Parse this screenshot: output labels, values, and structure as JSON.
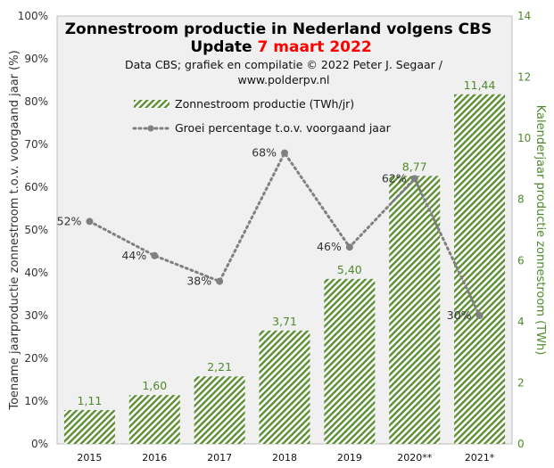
{
  "chart_data": {
    "type": "bar",
    "title_line1": "Zonnestroom productie in Nederland volgens CBS",
    "title_line2_prefix": "Update ",
    "title_line2_date": "7 maart 2022",
    "subtitle_line1": "Data CBS;  grafiek en compilatie  © 2022 Peter J. Segaar /",
    "subtitle_line2": "www.polderpv.nl",
    "categories": [
      "2015",
      "2016",
      "2017",
      "2018",
      "2019",
      "2020**",
      "2021*"
    ],
    "series": [
      {
        "name": "Zonnestroom productie (TWh/jr)",
        "type": "bar",
        "axis": "right",
        "values": [
          1.11,
          1.6,
          2.21,
          3.71,
          5.4,
          8.77,
          11.44
        ],
        "labels": [
          "1,11",
          "1,60",
          "2,21",
          "3,71",
          "5,40",
          "8,77",
          "11,44"
        ]
      },
      {
        "name": "Groei percentage t.o.v. voorgaand jaar",
        "type": "line",
        "axis": "left",
        "values": [
          52,
          44,
          38,
          68,
          46,
          62,
          30
        ],
        "labels": [
          "52%",
          "44%",
          "38%",
          "68%",
          "46%",
          "62%",
          "30%"
        ]
      }
    ],
    "ylabel": "Toename jaarproductie zonnestroom t.o.v. voorgaand jaar (%)",
    "y2label": "Kalenderjaar productie zonnestroom (TWh)",
    "ylim": [
      0,
      100
    ],
    "y2lim": [
      0,
      14
    ],
    "yticks": [
      "0%",
      "10%",
      "20%",
      "30%",
      "40%",
      "50%",
      "60%",
      "70%",
      "80%",
      "90%",
      "100%"
    ],
    "y2ticks": [
      "0",
      "2",
      "4",
      "6",
      "8",
      "10",
      "12",
      "14"
    ],
    "legend_position": "top-left",
    "grid": false,
    "colors": {
      "bar": "#5b8f32",
      "line": "#808080",
      "right_axis": "#4f8a2b",
      "title_date": "#ff0000",
      "plot_background": "#f0f0f0"
    }
  }
}
